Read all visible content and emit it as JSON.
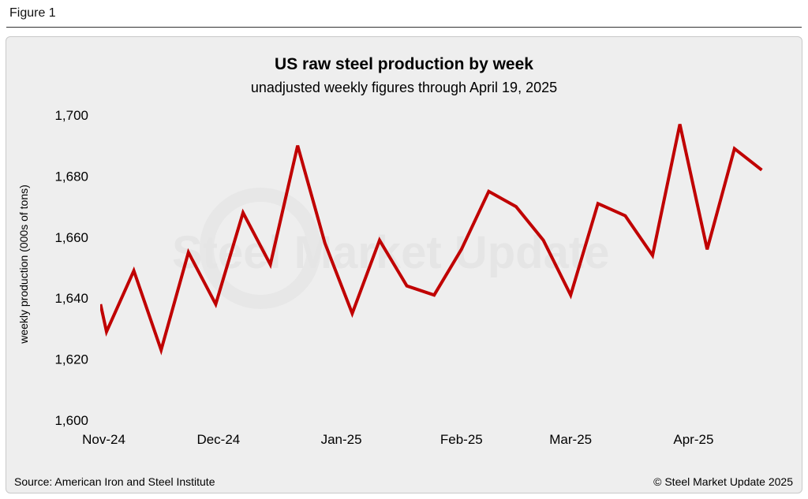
{
  "figure_label": "Figure 1",
  "source": "Source: American Iron and Steel Institute",
  "copyright": "© Steel Market Update 2025",
  "watermark": "Steel Market Update",
  "colors": {
    "line": "#c00000",
    "panel": "#eeeeee"
  },
  "chart_data": {
    "type": "line",
    "title": "US raw steel production by week",
    "subtitle": "unadjusted weekly figures through April 19, 2025",
    "xlabel": "",
    "ylabel": "weekly production (000s of tons)",
    "ylim": [
      1600,
      1700
    ],
    "yticks": [
      1600,
      1620,
      1640,
      1660,
      1680,
      1700
    ],
    "ytick_labels": [
      "1,600",
      "1,620",
      "1,640",
      "1,660",
      "1,680",
      "1,700"
    ],
    "grid": false,
    "x_unit": "week index",
    "xlim": [
      -0.22,
      24
    ],
    "xtick_labels": [
      {
        "label": "Nov-24",
        "x": -0.1
      },
      {
        "label": "Dec-24",
        "x": 4.1
      },
      {
        "label": "Jan-25",
        "x": 8.6
      },
      {
        "label": "Feb-25",
        "x": 13.0
      },
      {
        "label": "Mar-25",
        "x": 17.0
      },
      {
        "label": "Apr-25",
        "x": 21.5
      }
    ],
    "series": [
      {
        "name": "weekly production",
        "x": [
          -0.22,
          0,
          1,
          2,
          3,
          4,
          5,
          6,
          7,
          8,
          9,
          10,
          11,
          12,
          13,
          14,
          15,
          16,
          17,
          18,
          19,
          20,
          21,
          22,
          23,
          24
        ],
        "values": [
          1638,
          1629,
          1649,
          1623,
          1655,
          1638,
          1668,
          1651,
          1690,
          1658,
          1635,
          1659,
          1644,
          1641,
          1656,
          1675,
          1670,
          1659,
          1641,
          1671,
          1667,
          1654,
          1697,
          1656,
          1689,
          1682
        ]
      }
    ]
  }
}
